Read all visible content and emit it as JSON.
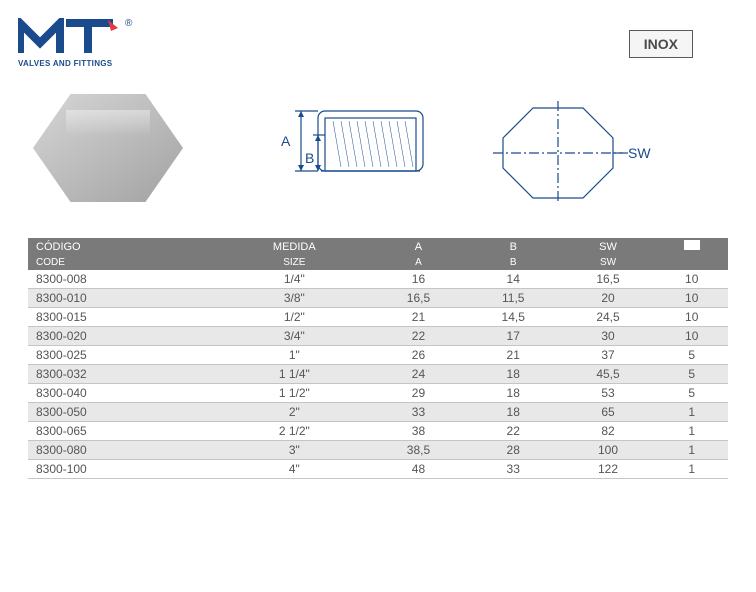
{
  "brand": {
    "logo_letters": "MT",
    "trademark": "®",
    "tagline": "VALVES AND FITTINGS",
    "logo_color": "#1a4b8c"
  },
  "badge": {
    "label": "INOX"
  },
  "drawing": {
    "section": {
      "label_A": "A",
      "label_B": "B"
    },
    "octagon": {
      "label_SW": "SW"
    }
  },
  "table": {
    "header_bg": "#7a7a7a",
    "header_fg": "#ffffff",
    "row_alt_bg": "#e8e8e8",
    "border_color": "#c5c5c5",
    "text_color": "#555555",
    "headers": {
      "row1": {
        "c0": "CÓDIGO",
        "c1": "MEDIDA",
        "c2": "A",
        "c3": "B",
        "c4": "SW",
        "c5": ""
      },
      "row2": {
        "c0": "CODE",
        "c1": "SIZE",
        "c2": "A",
        "c3": "B",
        "c4": "SW",
        "c5": ""
      }
    },
    "rows": [
      {
        "code": "8300-008",
        "size": "1/4\"",
        "a": "16",
        "b": "14",
        "sw": "16,5",
        "qty": "10"
      },
      {
        "code": "8300-010",
        "size": "3/8\"",
        "a": "16,5",
        "b": "11,5",
        "sw": "20",
        "qty": "10"
      },
      {
        "code": "8300-015",
        "size": "1/2\"",
        "a": "21",
        "b": "14,5",
        "sw": "24,5",
        "qty": "10"
      },
      {
        "code": "8300-020",
        "size": "3/4\"",
        "a": "22",
        "b": "17",
        "sw": "30",
        "qty": "10"
      },
      {
        "code": "8300-025",
        "size": "1\"",
        "a": "26",
        "b": "21",
        "sw": "37",
        "qty": "5"
      },
      {
        "code": "8300-032",
        "size": "1 1/4\"",
        "a": "24",
        "b": "18",
        "sw": "45,5",
        "qty": "5"
      },
      {
        "code": "8300-040",
        "size": "1 1/2\"",
        "a": "29",
        "b": "18",
        "sw": "53",
        "qty": "5"
      },
      {
        "code": "8300-050",
        "size": "2\"",
        "a": "33",
        "b": "18",
        "sw": "65",
        "qty": "1"
      },
      {
        "code": "8300-065",
        "size": "2 1/2\"",
        "a": "38",
        "b": "22",
        "sw": "82",
        "qty": "1"
      },
      {
        "code": "8300-080",
        "size": "3\"",
        "a": "38,5",
        "b": "28",
        "sw": "100",
        "qty": "1"
      },
      {
        "code": "8300-100",
        "size": "4\"",
        "a": "48",
        "b": "33",
        "sw": "122",
        "qty": "1"
      }
    ]
  }
}
